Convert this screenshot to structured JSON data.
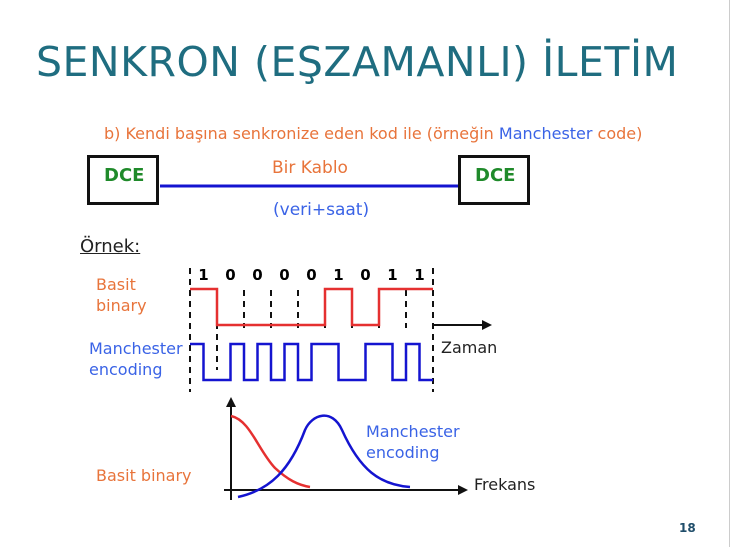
{
  "title": "SENKRON (EŞZAMANLI) İLETİM",
  "subtitle_prefix": "b) Kendi başına senkronize eden kod ile (örneğin ",
  "subtitle_highlight": "Manchester",
  "subtitle_suffix": " code)",
  "dce_left": "DCE",
  "dce_right": "DCE",
  "cable_label": "Bir Kablo",
  "cable_sublabel": "(veri+saat)",
  "example_label": "Örnek:",
  "bits": [
    "1",
    "0",
    "0",
    "0",
    "0",
    "1",
    "0",
    "1",
    "1"
  ],
  "basic_binary_label_1": "Basit",
  "basic_binary_label_2": "binary",
  "manchester_label_1": "Manchester",
  "manchester_label_2": "encoding",
  "time_axis_label": "Zaman",
  "spectrum_manchester_1": "Manchester",
  "spectrum_manchester_2": "encoding",
  "spectrum_basic": "Basit binary",
  "freq_axis_label": "Frekans",
  "page_number": "18",
  "colors": {
    "title": "#1f6d80",
    "orange": "#e8743b",
    "blue": "#3a63e6",
    "red": "#e53030",
    "signal_blue": "#1414d0",
    "dce_text": "#1f8a2a"
  }
}
